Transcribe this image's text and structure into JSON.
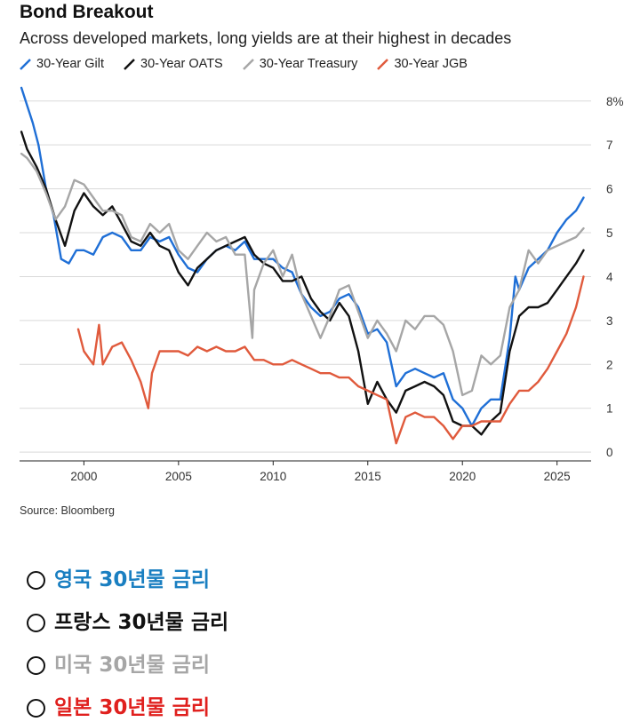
{
  "header": {
    "title": "Bond Breakout",
    "subtitle": "Across developed markets, long yields are at their highest in decades"
  },
  "source": "Source: Bloomberg",
  "notes": [
    {
      "label": "영국 30년물 금리",
      "color": "#1a7fc1"
    },
    {
      "label": "프랑스 30년물 금리",
      "color": "#111111"
    },
    {
      "label": "미국 30년물 금리",
      "color": "#a6a6a6"
    },
    {
      "label": "일본 30년물 금리",
      "color": "#e0201e"
    }
  ],
  "chart_data": {
    "type": "line",
    "title": "Bond Breakout",
    "subtitle": "Across developed markets, long yields are at their highest in decades",
    "x_ticks": [
      "2000",
      "2005",
      "2010",
      "2015",
      "2020",
      "2025"
    ],
    "y_ticks": [
      "0",
      "1",
      "2",
      "3",
      "4",
      "5",
      "6",
      "7",
      "8%"
    ],
    "xlim": [
      1996.6,
      2026.8
    ],
    "ylim": [
      -0.2,
      8.4
    ],
    "grid": "horizontal",
    "legend_position": "top-left",
    "series": [
      {
        "name": "30-Year Gilt",
        "color": "#1f6fd6",
        "x": [
          1996.7,
          1997.0,
          1997.3,
          1997.6,
          1998.0,
          1998.4,
          1998.8,
          1999.2,
          1999.6,
          2000.0,
          2000.5,
          2001.0,
          2001.5,
          2002.0,
          2002.5,
          2003.0,
          2003.5,
          2004.0,
          2004.5,
          2005.0,
          2005.5,
          2006.0,
          2006.5,
          2007.0,
          2007.5,
          2008.0,
          2008.5,
          2009.0,
          2009.5,
          2010.0,
          2010.5,
          2011.0,
          2011.5,
          2012.0,
          2012.5,
          2013.0,
          2013.5,
          2014.0,
          2014.5,
          2015.0,
          2015.5,
          2016.0,
          2016.5,
          2017.0,
          2017.5,
          2018.0,
          2018.5,
          2019.0,
          2019.5,
          2020.0,
          2020.5,
          2021.0,
          2021.5,
          2022.0,
          2022.5,
          2022.8,
          2023.0,
          2023.5,
          2024.0,
          2024.5,
          2025.0,
          2025.5,
          2026.0,
          2026.4
        ],
        "values": [
          8.3,
          7.9,
          7.5,
          7.0,
          6.0,
          5.4,
          4.4,
          4.3,
          4.6,
          4.6,
          4.5,
          4.9,
          5.0,
          4.9,
          4.6,
          4.6,
          4.9,
          4.8,
          4.9,
          4.5,
          4.2,
          4.1,
          4.4,
          4.6,
          4.7,
          4.6,
          4.8,
          4.4,
          4.4,
          4.4,
          4.2,
          4.1,
          3.6,
          3.3,
          3.1,
          3.2,
          3.5,
          3.6,
          3.3,
          2.7,
          2.8,
          2.5,
          1.5,
          1.8,
          1.9,
          1.8,
          1.7,
          1.8,
          1.2,
          1.0,
          0.6,
          1.0,
          1.2,
          1.2,
          2.6,
          4.0,
          3.7,
          4.2,
          4.4,
          4.6,
          5.0,
          5.3,
          5.5,
          5.8
        ]
      },
      {
        "name": "30-Year OATS",
        "color": "#111111",
        "x": [
          1996.7,
          1997.0,
          1997.5,
          1998.0,
          1998.5,
          1999.0,
          1999.5,
          2000.0,
          2000.5,
          2001.0,
          2001.5,
          2002.0,
          2002.5,
          2003.0,
          2003.5,
          2004.0,
          2004.5,
          2005.0,
          2005.5,
          2006.0,
          2006.5,
          2007.0,
          2007.5,
          2008.0,
          2008.5,
          2009.0,
          2009.5,
          2010.0,
          2010.5,
          2011.0,
          2011.5,
          2012.0,
          2012.5,
          2013.0,
          2013.5,
          2014.0,
          2014.5,
          2015.0,
          2015.5,
          2016.0,
          2016.5,
          2017.0,
          2017.5,
          2018.0,
          2018.5,
          2019.0,
          2019.5,
          2020.0,
          2020.5,
          2021.0,
          2021.5,
          2022.0,
          2022.5,
          2023.0,
          2023.5,
          2024.0,
          2024.5,
          2025.0,
          2025.5,
          2026.0,
          2026.4
        ],
        "values": [
          7.3,
          6.9,
          6.5,
          6.0,
          5.3,
          4.7,
          5.5,
          5.9,
          5.6,
          5.4,
          5.6,
          5.2,
          4.8,
          4.7,
          5.0,
          4.7,
          4.6,
          4.1,
          3.8,
          4.2,
          4.4,
          4.6,
          4.7,
          4.8,
          4.9,
          4.5,
          4.3,
          4.2,
          3.9,
          3.9,
          4.0,
          3.5,
          3.2,
          3.0,
          3.4,
          3.1,
          2.3,
          1.1,
          1.6,
          1.2,
          0.9,
          1.4,
          1.5,
          1.6,
          1.5,
          1.3,
          0.7,
          0.6,
          0.6,
          0.4,
          0.7,
          0.9,
          2.3,
          3.1,
          3.3,
          3.3,
          3.4,
          3.7,
          4.0,
          4.3,
          4.6
        ]
      },
      {
        "name": "30-Year Treasury",
        "color": "#a6a6a6",
        "x": [
          1996.7,
          1997.0,
          1997.5,
          1998.0,
          1998.5,
          1999.0,
          1999.5,
          2000.0,
          2000.5,
          2001.0,
          2001.5,
          2002.0,
          2002.5,
          2003.0,
          2003.5,
          2004.0,
          2004.5,
          2005.0,
          2005.5,
          2006.0,
          2006.5,
          2007.0,
          2007.5,
          2008.0,
          2008.5,
          2008.9,
          2009.0,
          2009.5,
          2010.0,
          2010.5,
          2011.0,
          2011.5,
          2012.0,
          2012.5,
          2013.0,
          2013.5,
          2014.0,
          2014.5,
          2015.0,
          2015.5,
          2016.0,
          2016.5,
          2017.0,
          2017.5,
          2018.0,
          2018.5,
          2019.0,
          2019.5,
          2020.0,
          2020.5,
          2021.0,
          2021.5,
          2022.0,
          2022.5,
          2023.0,
          2023.5,
          2024.0,
          2024.5,
          2025.0,
          2025.5,
          2026.0,
          2026.4
        ],
        "values": [
          6.8,
          6.7,
          6.4,
          5.9,
          5.3,
          5.6,
          6.2,
          6.1,
          5.8,
          5.5,
          5.5,
          5.4,
          4.9,
          4.8,
          5.2,
          5.0,
          5.2,
          4.6,
          4.4,
          4.7,
          5.0,
          4.8,
          4.9,
          4.5,
          4.5,
          2.6,
          3.7,
          4.3,
          4.6,
          4.0,
          4.5,
          3.6,
          3.1,
          2.6,
          3.1,
          3.7,
          3.8,
          3.2,
          2.6,
          3.0,
          2.7,
          2.3,
          3.0,
          2.8,
          3.1,
          3.1,
          2.9,
          2.3,
          1.3,
          1.4,
          2.2,
          2.0,
          2.2,
          3.3,
          3.7,
          4.6,
          4.3,
          4.6,
          4.7,
          4.8,
          4.9,
          5.1
        ]
      },
      {
        "name": "30-Year JGB",
        "color": "#e05a3c",
        "x": [
          1999.7,
          2000.0,
          2000.5,
          2000.8,
          2001.0,
          2001.5,
          2002.0,
          2002.5,
          2003.0,
          2003.4,
          2003.6,
          2004.0,
          2004.5,
          2005.0,
          2005.5,
          2006.0,
          2006.5,
          2007.0,
          2007.5,
          2008.0,
          2008.5,
          2009.0,
          2009.5,
          2010.0,
          2010.5,
          2011.0,
          2011.5,
          2012.0,
          2012.5,
          2013.0,
          2013.5,
          2014.0,
          2014.5,
          2015.0,
          2015.5,
          2016.0,
          2016.5,
          2017.0,
          2017.5,
          2018.0,
          2018.5,
          2019.0,
          2019.5,
          2020.0,
          2020.5,
          2021.0,
          2021.5,
          2022.0,
          2022.5,
          2023.0,
          2023.5,
          2024.0,
          2024.5,
          2025.0,
          2025.5,
          2026.0,
          2026.4
        ],
        "values": [
          2.8,
          2.3,
          2.0,
          2.9,
          2.0,
          2.4,
          2.5,
          2.1,
          1.6,
          1.0,
          1.8,
          2.3,
          2.3,
          2.3,
          2.2,
          2.4,
          2.3,
          2.4,
          2.3,
          2.3,
          2.4,
          2.1,
          2.1,
          2.0,
          2.0,
          2.1,
          2.0,
          1.9,
          1.8,
          1.8,
          1.7,
          1.7,
          1.5,
          1.4,
          1.3,
          1.2,
          0.2,
          0.8,
          0.9,
          0.8,
          0.8,
          0.6,
          0.3,
          0.6,
          0.6,
          0.7,
          0.7,
          0.7,
          1.1,
          1.4,
          1.4,
          1.6,
          1.9,
          2.3,
          2.7,
          3.3,
          4.0
        ]
      }
    ]
  }
}
